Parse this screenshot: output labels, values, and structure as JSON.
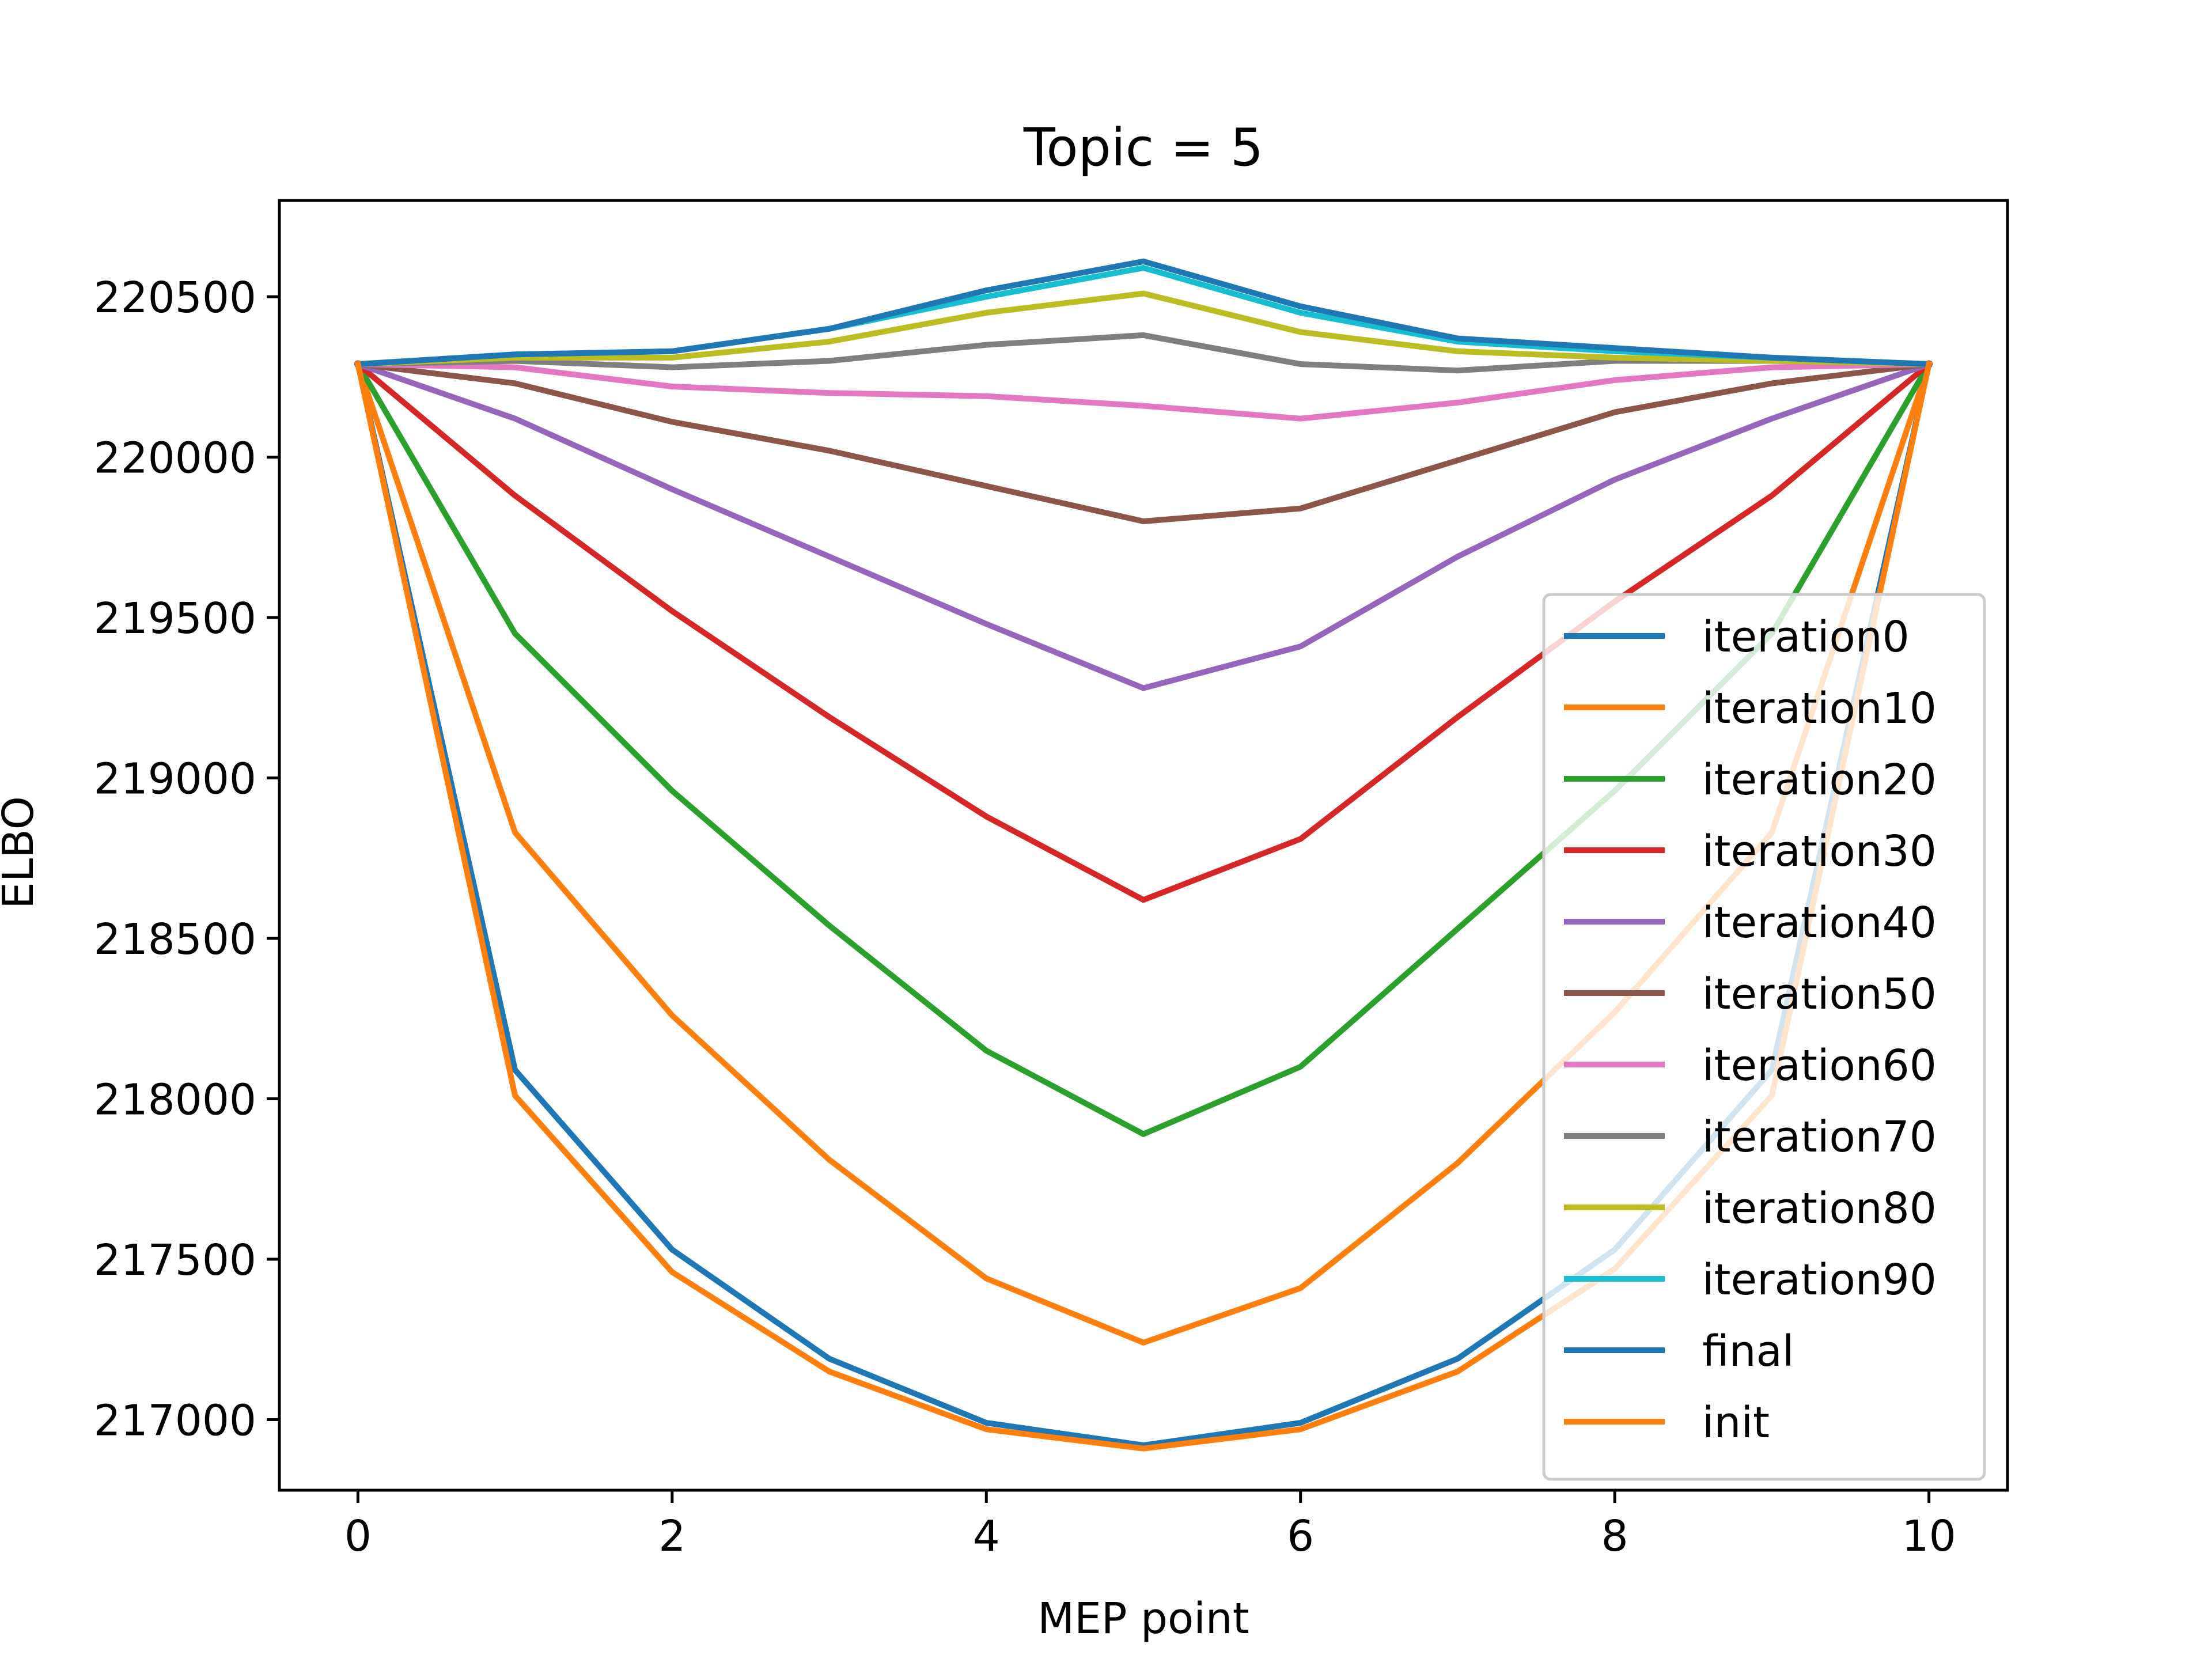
{
  "chart_data": {
    "type": "line",
    "title": "Topic = 5",
    "xlabel": "MEP point",
    "ylabel": "ELBO",
    "xlim": [
      -0.5,
      10.5
    ],
    "ylim": [
      216780,
      220800
    ],
    "xticks": [
      0,
      2,
      4,
      6,
      8,
      10
    ],
    "yticks": [
      217000,
      217500,
      218000,
      218500,
      219000,
      219500,
      220000,
      220500
    ],
    "grid": false,
    "legend_position": "lower-right",
    "x": [
      0,
      1,
      2,
      3,
      4,
      5,
      6,
      7,
      8,
      9,
      10
    ],
    "series": [
      {
        "name": "iteration0",
        "color": "#1f77b4",
        "values": [
          220290,
          218090,
          217530,
          217190,
          216990,
          216920,
          216990,
          217190,
          217530,
          218090,
          220290
        ]
      },
      {
        "name": "iteration10",
        "color": "#ff7f0e",
        "values": [
          220290,
          218830,
          218260,
          217810,
          217440,
          217240,
          217410,
          217800,
          218270,
          218830,
          220290
        ]
      },
      {
        "name": "iteration20",
        "color": "#2ca02c",
        "values": [
          220290,
          219450,
          218960,
          218540,
          218150,
          217890,
          218100,
          218530,
          218960,
          219450,
          220290
        ]
      },
      {
        "name": "iteration30",
        "color": "#d62728",
        "values": [
          220290,
          219880,
          219520,
          219190,
          218880,
          218620,
          218810,
          219190,
          219550,
          219880,
          220290
        ]
      },
      {
        "name": "iteration40",
        "color": "#9467bd",
        "values": [
          220290,
          220120,
          219900,
          219690,
          219480,
          219280,
          219410,
          219690,
          219930,
          220120,
          220290
        ]
      },
      {
        "name": "iteration50",
        "color": "#8c564b",
        "values": [
          220290,
          220230,
          220110,
          220020,
          219910,
          219800,
          219840,
          219990,
          220140,
          220230,
          220290
        ]
      },
      {
        "name": "iteration60",
        "color": "#e377c2",
        "values": [
          220290,
          220280,
          220220,
          220200,
          220190,
          220160,
          220120,
          220170,
          220240,
          220280,
          220290
        ]
      },
      {
        "name": "iteration70",
        "color": "#7f7f7f",
        "values": [
          220290,
          220300,
          220280,
          220300,
          220350,
          220380,
          220290,
          220270,
          220300,
          220300,
          220290
        ]
      },
      {
        "name": "iteration80",
        "color": "#bcbd22",
        "values": [
          220290,
          220310,
          220310,
          220360,
          220450,
          220510,
          220390,
          220330,
          220310,
          220300,
          220290
        ]
      },
      {
        "name": "iteration90",
        "color": "#17becf",
        "values": [
          220290,
          220320,
          220330,
          220400,
          220500,
          220590,
          220450,
          220360,
          220330,
          220310,
          220290
        ]
      },
      {
        "name": "final",
        "color": "#1f77b4",
        "values": [
          220290,
          220320,
          220330,
          220400,
          220520,
          220610,
          220470,
          220370,
          220340,
          220310,
          220290
        ]
      },
      {
        "name": "init",
        "color": "#ff7f0e",
        "values": [
          220290,
          218010,
          217460,
          217150,
          216970,
          216910,
          216970,
          217150,
          217470,
          218010,
          220290
        ]
      }
    ]
  }
}
